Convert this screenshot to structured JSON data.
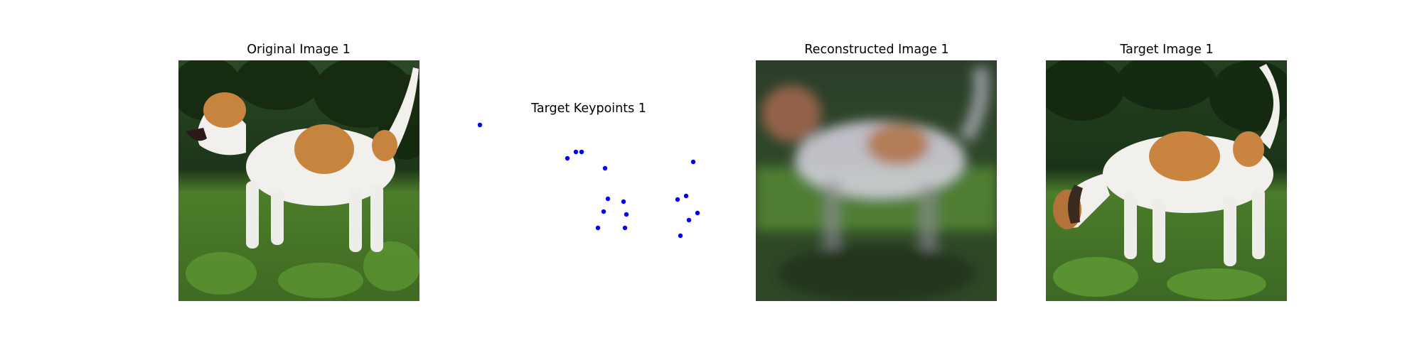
{
  "panels": {
    "original": {
      "title": "Original Image 1"
    },
    "keypoints": {
      "title": "Target Keypoints 1",
      "point_color": "#0000ff",
      "count": 17
    },
    "reconstructed": {
      "title": "Reconstructed Image 1"
    },
    "target": {
      "title": "Target Image 1"
    }
  },
  "colors": {
    "background": "#ffffff",
    "forest_dark": "#1f3a1c",
    "grass": "#4f7a2e",
    "dog_white": "#f1efec",
    "dog_tan": "#c98a45"
  }
}
